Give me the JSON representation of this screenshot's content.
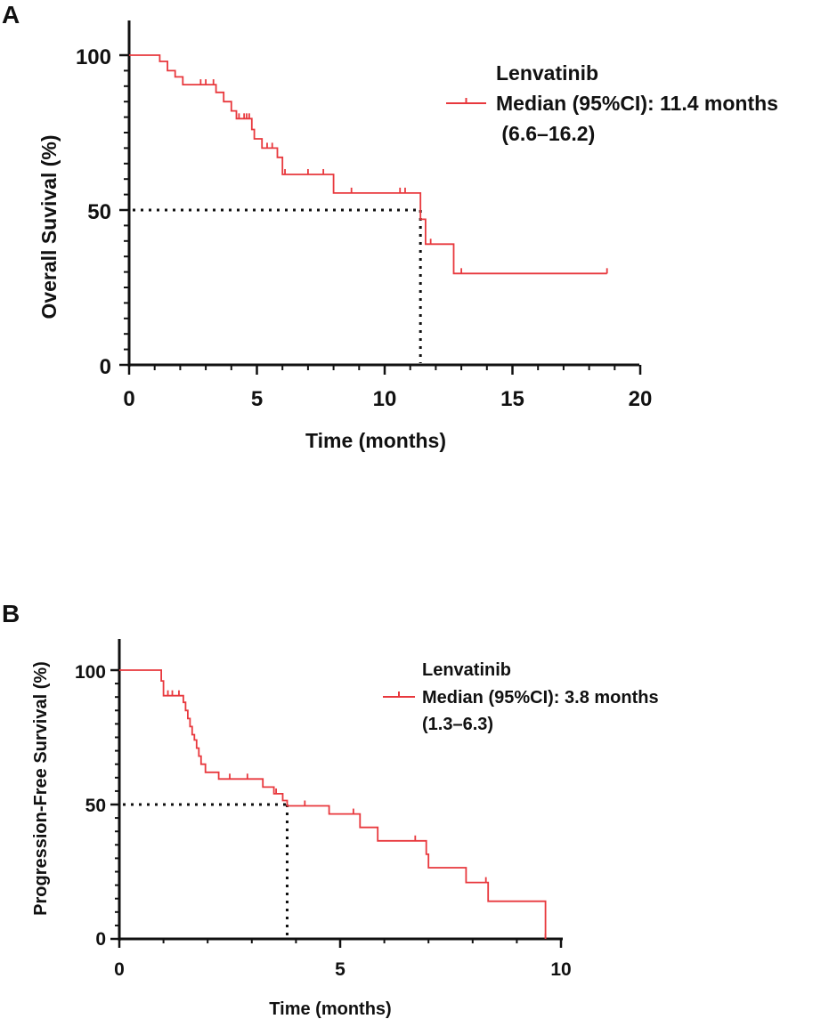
{
  "chart_data": [
    {
      "type": "line",
      "panel_label": "A",
      "xlabel": "Time (months)",
      "ylabel": "Overall Suvival (%)",
      "xlim": [
        0,
        20
      ],
      "ylim": [
        0,
        100
      ],
      "xticks": [
        0,
        5,
        10,
        15,
        20
      ],
      "yticks": [
        0,
        50,
        100
      ],
      "line_color": "#e8383d",
      "legend": {
        "title": "Lenvatinib",
        "line1": "Median (95%CI): 11.4 months",
        "line2": " (6.6–16.2)"
      },
      "median": 11.4,
      "series": [
        {
          "name": "Lenvatinib",
          "steps": [
            [
              0,
              100
            ],
            [
              1.2,
              100
            ],
            [
              1.2,
              98
            ],
            [
              1.5,
              98
            ],
            [
              1.5,
              95
            ],
            [
              1.8,
              95
            ],
            [
              1.8,
              93
            ],
            [
              2.1,
              93
            ],
            [
              2.1,
              90.5
            ],
            [
              3.4,
              90.5
            ],
            [
              3.4,
              88
            ],
            [
              3.7,
              88
            ],
            [
              3.7,
              85
            ],
            [
              4.0,
              85
            ],
            [
              4.0,
              82
            ],
            [
              4.2,
              82
            ],
            [
              4.2,
              79.5
            ],
            [
              4.8,
              79.5
            ],
            [
              4.8,
              76
            ],
            [
              4.9,
              76
            ],
            [
              4.9,
              73
            ],
            [
              5.2,
              73
            ],
            [
              5.2,
              70
            ],
            [
              5.8,
              70
            ],
            [
              5.8,
              67
            ],
            [
              6.0,
              67
            ],
            [
              6.0,
              61.5
            ],
            [
              8.0,
              61.5
            ],
            [
              8.0,
              55.5
            ],
            [
              11.4,
              55.5
            ],
            [
              11.4,
              47
            ],
            [
              11.6,
              47
            ],
            [
              11.6,
              39
            ],
            [
              12.7,
              39
            ],
            [
              12.7,
              29.5
            ],
            [
              18.7,
              29.5
            ]
          ],
          "censored": [
            [
              2.8,
              90.5
            ],
            [
              3.0,
              90.5
            ],
            [
              3.3,
              90.5
            ],
            [
              4.3,
              79.5
            ],
            [
              4.5,
              79.5
            ],
            [
              4.6,
              79.5
            ],
            [
              4.7,
              79.5
            ],
            [
              5.4,
              70
            ],
            [
              5.6,
              70
            ],
            [
              6.1,
              61.5
            ],
            [
              7.0,
              61.5
            ],
            [
              7.6,
              61.5
            ],
            [
              8.7,
              55.5
            ],
            [
              10.6,
              55.5
            ],
            [
              10.8,
              55.5
            ],
            [
              11.8,
              39
            ],
            [
              13.0,
              29.5
            ],
            [
              18.7,
              29.5
            ]
          ]
        }
      ]
    },
    {
      "type": "line",
      "panel_label": "B",
      "xlabel": "Time (months)",
      "ylabel": "Progression-Free Survival (%)",
      "xlim": [
        0,
        10
      ],
      "ylim": [
        0,
        100
      ],
      "xticks": [
        0,
        5,
        10
      ],
      "yticks": [
        0,
        50,
        100
      ],
      "line_color": "#e8383d",
      "legend": {
        "title": "Lenvatinib",
        "line1": "Median (95%CI): 3.8 months",
        "line2": "(1.3–6.3)"
      },
      "median": 3.8,
      "series": [
        {
          "name": "Lenvatinib",
          "steps": [
            [
              0,
              100
            ],
            [
              0.95,
              100
            ],
            [
              0.95,
              96
            ],
            [
              1.0,
              96
            ],
            [
              1.0,
              90.5
            ],
            [
              1.45,
              90.5
            ],
            [
              1.45,
              88
            ],
            [
              1.5,
              88
            ],
            [
              1.5,
              85
            ],
            [
              1.55,
              85
            ],
            [
              1.55,
              82
            ],
            [
              1.6,
              82
            ],
            [
              1.6,
              79
            ],
            [
              1.65,
              79
            ],
            [
              1.65,
              76
            ],
            [
              1.7,
              76
            ],
            [
              1.7,
              74
            ],
            [
              1.75,
              74
            ],
            [
              1.75,
              71
            ],
            [
              1.8,
              71
            ],
            [
              1.8,
              68
            ],
            [
              1.85,
              68
            ],
            [
              1.85,
              65
            ],
            [
              1.95,
              65
            ],
            [
              1.95,
              62
            ],
            [
              2.25,
              62
            ],
            [
              2.25,
              59.5
            ],
            [
              3.25,
              59.5
            ],
            [
              3.25,
              56.5
            ],
            [
              3.5,
              56.5
            ],
            [
              3.5,
              54
            ],
            [
              3.7,
              54
            ],
            [
              3.7,
              51.5
            ],
            [
              3.8,
              51.5
            ],
            [
              3.8,
              49.5
            ],
            [
              4.75,
              49.5
            ],
            [
              4.75,
              46.5
            ],
            [
              5.45,
              46.5
            ],
            [
              5.45,
              41.5
            ],
            [
              5.85,
              41.5
            ],
            [
              5.85,
              36.5
            ],
            [
              6.95,
              36.5
            ],
            [
              6.95,
              31.5
            ],
            [
              7.0,
              31.5
            ],
            [
              7.0,
              26.5
            ],
            [
              7.85,
              26.5
            ],
            [
              7.85,
              21
            ],
            [
              8.35,
              21
            ],
            [
              8.35,
              14
            ],
            [
              9.65,
              14
            ],
            [
              9.65,
              0
            ]
          ],
          "censored": [
            [
              1.1,
              90.5
            ],
            [
              1.2,
              90.5
            ],
            [
              1.35,
              90.5
            ],
            [
              2.5,
              59.5
            ],
            [
              2.9,
              59.5
            ],
            [
              3.55,
              54
            ],
            [
              4.2,
              49.5
            ],
            [
              5.3,
              46.5
            ],
            [
              6.7,
              36.5
            ],
            [
              8.3,
              21
            ],
            [
              9.65,
              0
            ]
          ]
        }
      ]
    }
  ]
}
